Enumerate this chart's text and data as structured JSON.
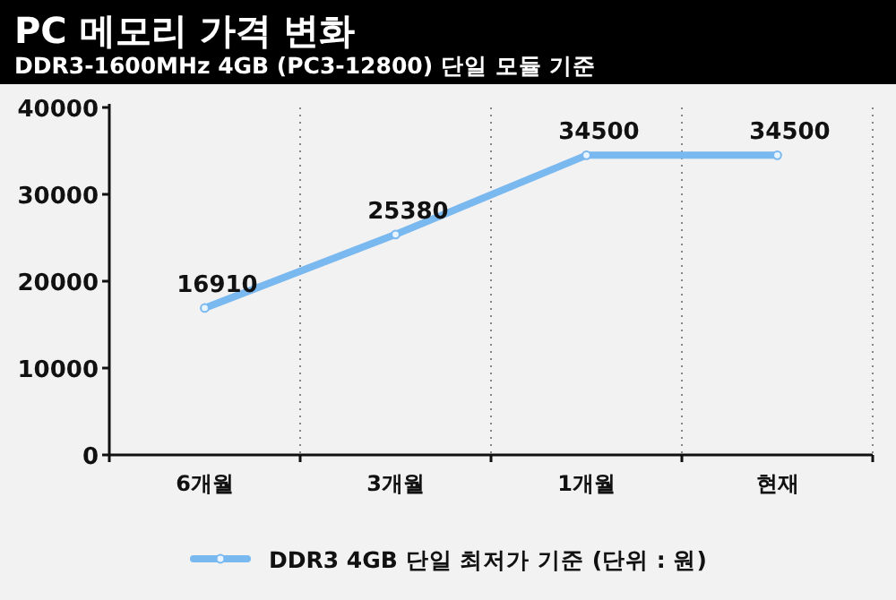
{
  "chart_data": {
    "type": "line",
    "title": "PC 메모리 가격 변화",
    "subtitle": "DDR3-1600MHz 4GB (PC3-12800) 단일 모듈 기준",
    "categories": [
      "6개월",
      "3개월",
      "1개월",
      "현재"
    ],
    "series": [
      {
        "name": "DDR3 4GB 단일 최저가 기준 (단위 : 원)",
        "color": "#7ab8f0",
        "values": [
          16910,
          25380,
          34500,
          34500
        ]
      }
    ],
    "ylim": [
      0,
      40000
    ],
    "yticks": [
      0,
      10000,
      20000,
      30000,
      40000
    ],
    "grid": "x",
    "legend": "bottom",
    "data_labels": true,
    "marker": "circle",
    "line_style": "solid"
  }
}
